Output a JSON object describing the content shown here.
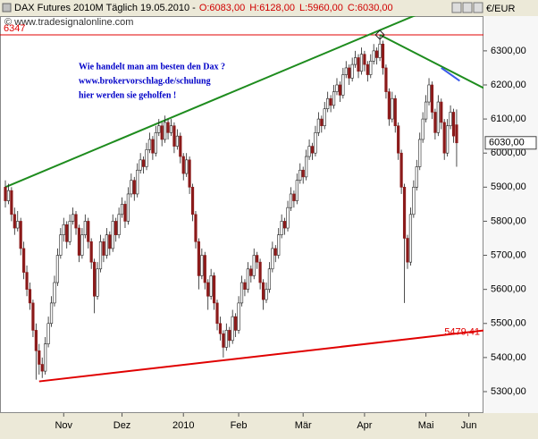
{
  "chart_data": {
    "type": "candlestick",
    "title": "DAX Futures 2010M Täglich  19.05.2010 -",
    "title_values": [
      "O:6083,00",
      "H:6128,00",
      "L:5960,00",
      "C:6030,00"
    ],
    "source": "© www.tradesignalonline.com",
    "unit": "€/EUR",
    "notes": [
      "Wie handelt man am besten den Dax ?",
      "www.brokervorschlag.de/schulung",
      "hier werden sie geholfen !"
    ],
    "last_price_label": "6030,00",
    "up_color": "#ffffff",
    "down_color": "#8b1a1a",
    "ylim": [
      5237,
      6402
    ],
    "yticks": [
      {
        "value": 5300,
        "label": "5300,00"
      },
      {
        "value": 5400,
        "label": "5400,00"
      },
      {
        "value": 5500,
        "label": "5500,00"
      },
      {
        "value": 5600,
        "label": "5600,00"
      },
      {
        "value": 5700,
        "label": "5700,00"
      },
      {
        "value": 5800,
        "label": "5800,00"
      },
      {
        "value": 5900,
        "label": "5900,00"
      },
      {
        "value": 6000,
        "label": "6000,00"
      },
      {
        "value": 6100,
        "label": "6100,00"
      },
      {
        "value": 6200,
        "label": "6200,00"
      },
      {
        "value": 6300,
        "label": "6300,00"
      }
    ],
    "xlim": [
      -1.75,
      155.75
    ],
    "xticks": [
      {
        "value": 19,
        "label": "Nov"
      },
      {
        "value": 38,
        "label": "Dez"
      },
      {
        "value": 58,
        "label": "2010"
      },
      {
        "value": 76,
        "label": "Feb"
      },
      {
        "value": 97,
        "label": "Mär"
      },
      {
        "value": 117,
        "label": "Apr"
      },
      {
        "value": 137,
        "label": "Mai"
      },
      {
        "value": 151,
        "label": "Jun"
      }
    ],
    "hline": {
      "value": 6347,
      "label": "6347",
      "color": "#e00000"
    },
    "support_label": {
      "value": 5479.41,
      "label": "5479,41",
      "color": "#e00000"
    },
    "trend_lines": [
      {
        "color": "#1e8c1e",
        "points": [
          [
            0,
            5900
          ],
          [
            143,
            6440
          ]
        ]
      },
      {
        "color": "#1e8c1e",
        "points": [
          [
            122,
            6347
          ],
          [
            156,
            6190
          ]
        ]
      },
      {
        "color": "#3a5ae8",
        "points": [
          [
            142,
            6250
          ],
          [
            148,
            6212
          ]
        ]
      },
      {
        "color": "#e00000",
        "points": [
          [
            11,
            5330
          ],
          [
            155.75,
            5479.41
          ]
        ]
      }
    ],
    "ohlc": [
      [
        5900,
        5920,
        5840,
        5860
      ],
      [
        5860,
        5910,
        5850,
        5890
      ],
      [
        5890,
        5900,
        5800,
        5820
      ],
      [
        5820,
        5840,
        5760,
        5780
      ],
      [
        5780,
        5830,
        5770,
        5800
      ],
      [
        5800,
        5810,
        5700,
        5720
      ],
      [
        5720,
        5740,
        5630,
        5650
      ],
      [
        5650,
        5670,
        5580,
        5600
      ],
      [
        5600,
        5620,
        5540,
        5560
      ],
      [
        5560,
        5570,
        5460,
        5480
      ],
      [
        5480,
        5500,
        5335,
        5420
      ],
      [
        5420,
        5440,
        5350,
        5380
      ],
      [
        5380,
        5400,
        5340,
        5360
      ],
      [
        5360,
        5460,
        5350,
        5440
      ],
      [
        5440,
        5520,
        5430,
        5500
      ],
      [
        5500,
        5580,
        5490,
        5560
      ],
      [
        5560,
        5640,
        5550,
        5620
      ],
      [
        5620,
        5720,
        5610,
        5700
      ],
      [
        5700,
        5780,
        5690,
        5760
      ],
      [
        5760,
        5810,
        5740,
        5790
      ],
      [
        5790,
        5800,
        5720,
        5740
      ],
      [
        5740,
        5820,
        5730,
        5800
      ],
      [
        5800,
        5840,
        5790,
        5820
      ],
      [
        5820,
        5830,
        5760,
        5780
      ],
      [
        5780,
        5790,
        5680,
        5700
      ],
      [
        5700,
        5780,
        5690,
        5760
      ],
      [
        5760,
        5820,
        5750,
        5800
      ],
      [
        5800,
        5810,
        5720,
        5740
      ],
      [
        5740,
        5750,
        5660,
        5680
      ],
      [
        5680,
        5690,
        5530,
        5580
      ],
      [
        5580,
        5680,
        5570,
        5660
      ],
      [
        5660,
        5760,
        5650,
        5740
      ],
      [
        5740,
        5750,
        5680,
        5700
      ],
      [
        5700,
        5780,
        5690,
        5760
      ],
      [
        5760,
        5770,
        5700,
        5720
      ],
      [
        5720,
        5820,
        5710,
        5800
      ],
      [
        5800,
        5810,
        5740,
        5760
      ],
      [
        5760,
        5840,
        5750,
        5820
      ],
      [
        5820,
        5870,
        5810,
        5850
      ],
      [
        5850,
        5860,
        5780,
        5800
      ],
      [
        5800,
        5900,
        5790,
        5880
      ],
      [
        5880,
        5940,
        5870,
        5920
      ],
      [
        5920,
        5930,
        5860,
        5880
      ],
      [
        5880,
        5970,
        5870,
        5950
      ],
      [
        5950,
        6000,
        5940,
        5980
      ],
      [
        5980,
        5990,
        5940,
        5960
      ],
      [
        5960,
        6030,
        5950,
        6010
      ],
      [
        6010,
        6060,
        6000,
        6040
      ],
      [
        6040,
        6050,
        5980,
        6000
      ],
      [
        6000,
        6080,
        5990,
        6060
      ],
      [
        6060,
        6100,
        6050,
        6080
      ],
      [
        6080,
        6090,
        6020,
        6040
      ],
      [
        6040,
        6110,
        6030,
        6090
      ],
      [
        6090,
        6100,
        6040,
        6060
      ],
      [
        6060,
        6100,
        6050,
        6080
      ],
      [
        6080,
        6090,
        6000,
        6020
      ],
      [
        6020,
        6070,
        6010,
        6050
      ],
      [
        6050,
        6060,
        5970,
        5990
      ],
      [
        5990,
        6000,
        5920,
        5940
      ],
      [
        5940,
        6000,
        5930,
        5980
      ],
      [
        5980,
        5990,
        5880,
        5900
      ],
      [
        5900,
        5910,
        5800,
        5820
      ],
      [
        5820,
        5830,
        5720,
        5740
      ],
      [
        5740,
        5750,
        5600,
        5640
      ],
      [
        5640,
        5720,
        5630,
        5700
      ],
      [
        5700,
        5710,
        5600,
        5620
      ],
      [
        5620,
        5630,
        5540,
        5580
      ],
      [
        5580,
        5660,
        5570,
        5640
      ],
      [
        5640,
        5650,
        5540,
        5560
      ],
      [
        5560,
        5570,
        5480,
        5500
      ],
      [
        5500,
        5520,
        5450,
        5470
      ],
      [
        5470,
        5480,
        5400,
        5430
      ],
      [
        5430,
        5500,
        5420,
        5480
      ],
      [
        5480,
        5490,
        5430,
        5450
      ],
      [
        5450,
        5540,
        5440,
        5520
      ],
      [
        5520,
        5530,
        5460,
        5480
      ],
      [
        5480,
        5580,
        5470,
        5560
      ],
      [
        5560,
        5640,
        5550,
        5620
      ],
      [
        5620,
        5630,
        5580,
        5600
      ],
      [
        5600,
        5680,
        5590,
        5660
      ],
      [
        5660,
        5670,
        5620,
        5640
      ],
      [
        5640,
        5720,
        5630,
        5700
      ],
      [
        5700,
        5710,
        5660,
        5680
      ],
      [
        5680,
        5690,
        5600,
        5620
      ],
      [
        5620,
        5630,
        5540,
        5570
      ],
      [
        5570,
        5620,
        5560,
        5600
      ],
      [
        5600,
        5680,
        5590,
        5660
      ],
      [
        5660,
        5740,
        5650,
        5720
      ],
      [
        5720,
        5730,
        5680,
        5700
      ],
      [
        5700,
        5780,
        5690,
        5760
      ],
      [
        5760,
        5820,
        5750,
        5800
      ],
      [
        5800,
        5810,
        5760,
        5780
      ],
      [
        5780,
        5860,
        5770,
        5840
      ],
      [
        5840,
        5900,
        5830,
        5880
      ],
      [
        5880,
        5890,
        5840,
        5860
      ],
      [
        5860,
        5940,
        5850,
        5920
      ],
      [
        5920,
        5970,
        5910,
        5950
      ],
      [
        5950,
        5960,
        5910,
        5930
      ],
      [
        5930,
        6010,
        5920,
        5990
      ],
      [
        5990,
        6040,
        5980,
        6020
      ],
      [
        6020,
        6030,
        5980,
        6000
      ],
      [
        6000,
        6080,
        5990,
        6060
      ],
      [
        6060,
        6120,
        6050,
        6100
      ],
      [
        6100,
        6110,
        6060,
        6080
      ],
      [
        6080,
        6150,
        6070,
        6130
      ],
      [
        6130,
        6180,
        6120,
        6160
      ],
      [
        6160,
        6170,
        6120,
        6140
      ],
      [
        6140,
        6200,
        6130,
        6180
      ],
      [
        6180,
        6220,
        6170,
        6200
      ],
      [
        6200,
        6210,
        6150,
        6170
      ],
      [
        6170,
        6250,
        6160,
        6230
      ],
      [
        6230,
        6270,
        6220,
        6250
      ],
      [
        6250,
        6260,
        6200,
        6220
      ],
      [
        6220,
        6280,
        6210,
        6260
      ],
      [
        6260,
        6300,
        6250,
        6280
      ],
      [
        6280,
        6290,
        6220,
        6240
      ],
      [
        6240,
        6310,
        6230,
        6290
      ],
      [
        6290,
        6300,
        6240,
        6260
      ],
      [
        6260,
        6270,
        6210,
        6230
      ],
      [
        6230,
        6290,
        6220,
        6270
      ],
      [
        6270,
        6320,
        6260,
        6300
      ],
      [
        6300,
        6310,
        6260,
        6280
      ],
      [
        6280,
        6347,
        6270,
        6320
      ],
      [
        6320,
        6330,
        6230,
        6250
      ],
      [
        6250,
        6260,
        6160,
        6180
      ],
      [
        6180,
        6190,
        6080,
        6100
      ],
      [
        6100,
        6180,
        6090,
        6160
      ],
      [
        6160,
        6170,
        6060,
        6080
      ],
      [
        6080,
        6090,
        5980,
        6000
      ],
      [
        6000,
        6010,
        5880,
        5900
      ],
      [
        5900,
        5910,
        5560,
        5750
      ],
      [
        5750,
        5760,
        5660,
        5680
      ],
      [
        5680,
        5840,
        5670,
        5820
      ],
      [
        5820,
        5920,
        5810,
        5900
      ],
      [
        5900,
        5980,
        5890,
        5960
      ],
      [
        5960,
        6060,
        5950,
        6040
      ],
      [
        6040,
        6120,
        6030,
        6100
      ],
      [
        6100,
        6170,
        6090,
        6150
      ],
      [
        6150,
        6220,
        6140,
        6200
      ],
      [
        6200,
        6210,
        6100,
        6120
      ],
      [
        6120,
        6130,
        6040,
        6060
      ],
      [
        6060,
        6170,
        6050,
        6150
      ],
      [
        6150,
        6160,
        6070,
        6090
      ],
      [
        6090,
        6100,
        5980,
        6000
      ],
      [
        6000,
        6100,
        5990,
        6080
      ],
      [
        6080,
        6140,
        6070,
        6120
      ],
      [
        6120,
        6130,
        6030,
        6050
      ],
      [
        6083,
        6128,
        5960,
        6030
      ]
    ]
  }
}
